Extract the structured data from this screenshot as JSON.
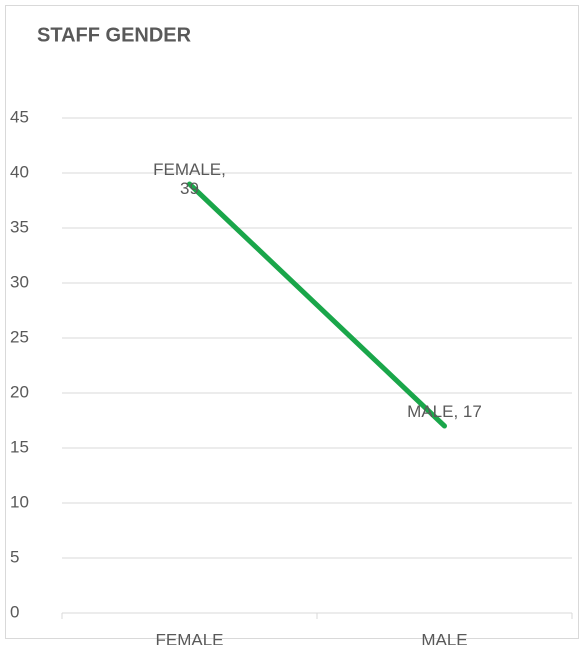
{
  "chart_data": {
    "type": "line",
    "title": "STAFF GENDER",
    "categories": [
      "FEMALE",
      "MALE"
    ],
    "series": [
      {
        "name": "STAFF GENDER",
        "color": "#1aa64a",
        "values": [
          39,
          17
        ]
      }
    ],
    "value_labels": [
      "FEMALE, 39",
      "MALE, 17"
    ],
    "ylim": [
      0,
      45
    ],
    "yticks": [
      0,
      5,
      10,
      15,
      20,
      25,
      30,
      35,
      40,
      45
    ],
    "grid": true
  }
}
